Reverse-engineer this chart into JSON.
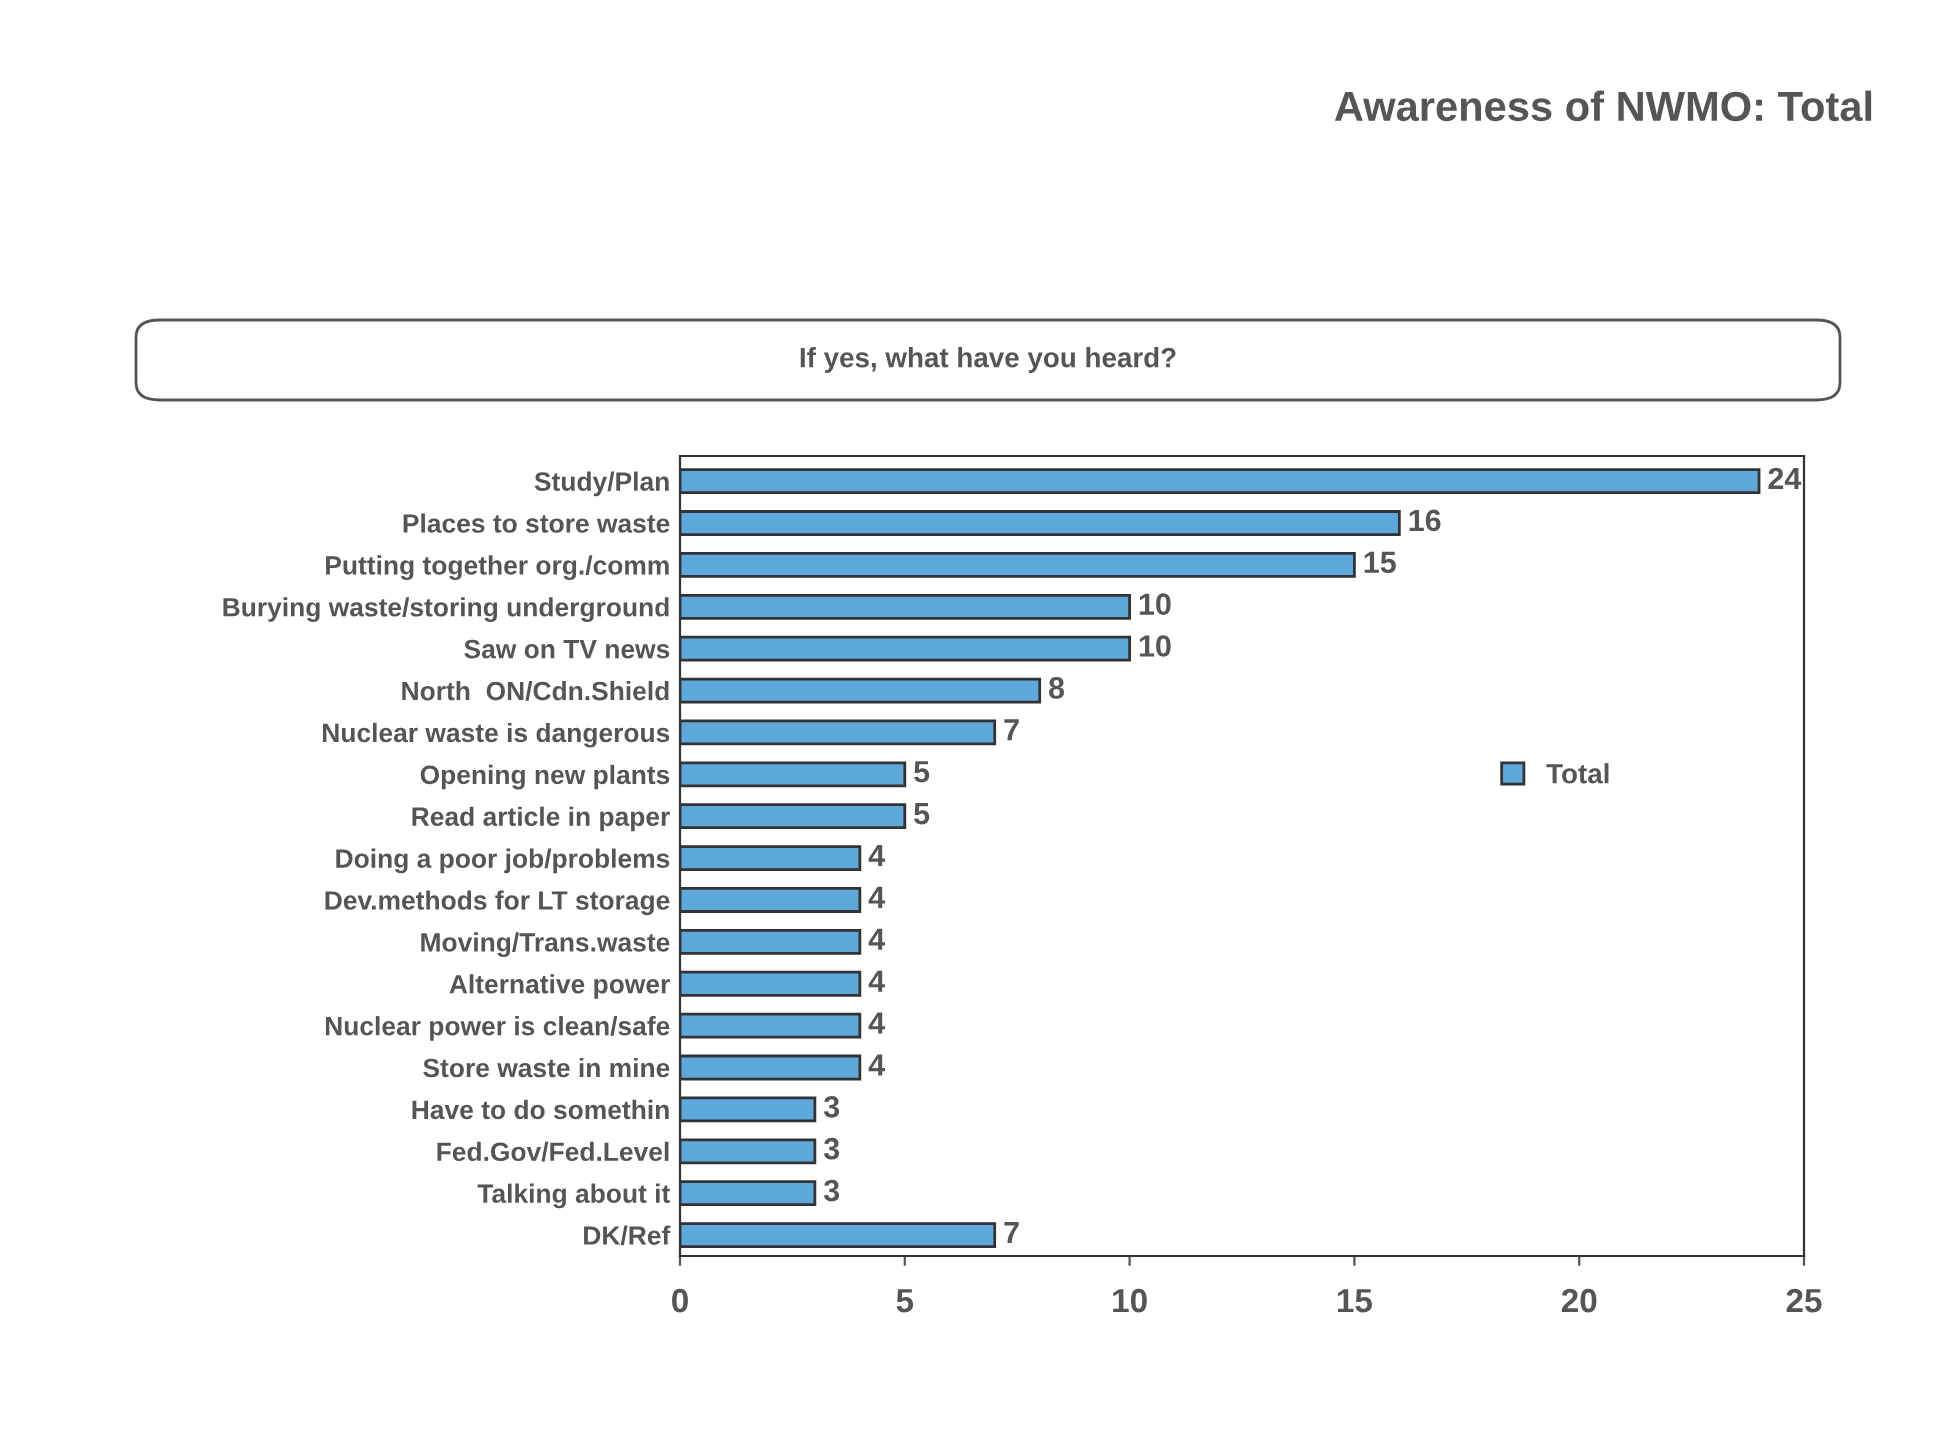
{
  "chart_data": {
    "type": "bar",
    "orientation": "horizontal",
    "title": "Awareness of NWMO: Total",
    "subtitle": "If yes, what have you heard?",
    "categories": [
      "Study/Plan",
      "Places to store waste",
      "Putting together org./comm",
      "Burying waste/storing underground",
      "Saw on TV news",
      "North  ON/Cdn.Shield",
      "Nuclear waste is dangerous",
      "Opening new plants",
      "Read article in paper",
      "Doing a poor job/problems",
      "Dev.methods for LT storage",
      "Moving/Trans.waste",
      "Alternative power",
      "Nuclear power is clean/safe",
      "Store waste in mine",
      "Have to do somethin",
      "Fed.Gov/Fed.Level",
      "Talking about it",
      "DK/Ref"
    ],
    "series": [
      {
        "name": "Total",
        "color": "#5fa8dc",
        "values": [
          24,
          16,
          15,
          10,
          10,
          8,
          7,
          5,
          5,
          4,
          4,
          4,
          4,
          4,
          4,
          3,
          3,
          3,
          7
        ]
      }
    ],
    "xlim": [
      0,
      25
    ],
    "xticks": [
      0,
      5,
      10,
      15,
      20,
      25
    ],
    "data_labels": true,
    "legend": "right",
    "grid": false
  }
}
